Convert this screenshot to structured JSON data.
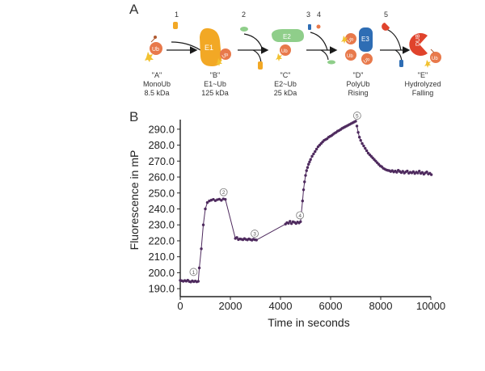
{
  "panel_a": {
    "label": "A",
    "steps": [
      "1",
      "2",
      "3",
      "4",
      "5"
    ],
    "states": [
      {
        "letter": "\"A\"",
        "line1": "MonoUb",
        "line2": "8.5 kDa"
      },
      {
        "letter": "\"B\"",
        "line1": "E1~Ub",
        "line2": "125 kDa"
      },
      {
        "letter": "\"C\"",
        "line1": "E2~Ub",
        "line2": "25 kDa"
      },
      {
        "letter": "\"D\"",
        "line1": "PolyUb",
        "line2": "Rising"
      },
      {
        "letter": "\"E\"",
        "line1": "Hydrolyzed",
        "line2": "Falling"
      }
    ],
    "molecule_labels": {
      "ub": "Ub",
      "e1": "E1",
      "e2": "E2",
      "e3": "E3",
      "dub": "DUB"
    },
    "colors": {
      "ub": "#e8794b",
      "e1": "#f2a825",
      "e2": "#8fce8a",
      "e3": "#2e6db4",
      "dub": "#e0432c",
      "atp": "#f2a825"
    }
  },
  "panel_b": {
    "label": "B"
  },
  "chart_data": {
    "type": "scatter",
    "title": "",
    "xlabel": "Time in seconds",
    "ylabel": "Fluorescence in mP",
    "xlim": [
      0,
      10000
    ],
    "ylim": [
      185,
      296
    ],
    "xticks": [
      0,
      2000,
      4000,
      6000,
      8000,
      10000
    ],
    "xtick_labels": [
      "0",
      "2000",
      "4000",
      "6000",
      "8000",
      "10000"
    ],
    "yticks": [
      190,
      200,
      210,
      220,
      230,
      240,
      250,
      260,
      270,
      280,
      290
    ],
    "ytick_labels": [
      "190.0",
      "200.0",
      "210.0",
      "220.0",
      "230.0",
      "240.0",
      "250.0",
      "260.0",
      "270.0",
      "280.0",
      "290.0"
    ],
    "grid": false,
    "series": [
      {
        "name": "mP",
        "color": "#4e2a5e",
        "segments": [
          {
            "x": [
              0,
              60,
              120,
              180,
              240,
              300,
              360,
              420,
              480,
              540,
              600,
              660,
              720
            ],
            "y": [
              195.2,
              195.0,
              194.6,
              195.1,
              194.7,
              195.3,
              194.5,
              194.2,
              194.9,
              194.4,
              194.8,
              194.3,
              194.6
            ]
          },
          {
            "x": [
              760,
              840,
              920,
              1000,
              1080,
              1160,
              1240,
              1320,
              1400,
              1480,
              1560,
              1640,
              1720,
              1800
            ],
            "y": [
              203,
              215,
              230,
              240,
              244,
              245,
              245.5,
              246,
              245.2,
              245.8,
              246.1,
              245.4,
              246.3,
              246.0
            ]
          },
          {
            "x": [
              2200,
              2260,
              2320,
              2380,
              2440,
              2500,
              2560,
              2620,
              2680,
              2740,
              2800,
              2860,
              2920,
              2980,
              3040
            ],
            "y": [
              221.5,
              222.1,
              220.8,
              221.2,
              221.0,
              220.7,
              221.4,
              220.9,
              220.6,
              221.2,
              220.8,
              220.4,
              221.0,
              220.7,
              220.5
            ]
          },
          {
            "x": [
              4200,
              4260,
              4320,
              4380,
              4440,
              4500,
              4560,
              4620,
              4680,
              4740,
              4800
            ],
            "y": [
              230.5,
              231.4,
              231.0,
              232.2,
              230.8,
              232.0,
              231.6,
              230.9,
              231.8,
              231.2,
              232.0
            ]
          },
          {
            "x": [
              4880,
              4920,
              4960,
              5000,
              5040,
              5080,
              5120,
              5160,
              5200,
              5260,
              5320,
              5380,
              5440,
              5500,
              5560,
              5620,
              5680,
              5740,
              5800,
              5860,
              5920,
              5980,
              6040,
              6100,
              6160,
              6220,
              6280,
              6340,
              6400,
              6460,
              6520,
              6580,
              6640,
              6700,
              6760,
              6820,
              6880,
              6940,
              7000
            ],
            "y": [
              245,
              252,
              257,
              261,
              264,
              266,
              268,
              269.5,
              271,
              273,
              274.5,
              276,
              277.5,
              279,
              280,
              281,
              282,
              283,
              283.5,
              284,
              285,
              285.5,
              286,
              286.8,
              287.5,
              288,
              288.8,
              289.2,
              289.8,
              290.5,
              291,
              291.5,
              292,
              292.5,
              293,
              293.5,
              294,
              294.5,
              295
            ]
          },
          {
            "x": [
              7050,
              7100,
              7150,
              7200,
              7260,
              7320,
              7380,
              7440,
              7500,
              7560,
              7620,
              7680,
              7740,
              7800,
              7860,
              7920,
              7980,
              8040,
              8100,
              8160,
              8220,
              8280,
              8340,
              8400,
              8460,
              8520,
              8580,
              8640,
              8700,
              8760,
              8820,
              8880,
              8940,
              9000,
              9060,
              9120,
              9180,
              9240,
              9300,
              9360,
              9420,
              9480,
              9540,
              9600,
              9660,
              9720,
              9780,
              9840,
              9900,
              9960,
              10020
            ],
            "y": [
              292,
              288,
              285,
              283,
              281,
              279.5,
              278,
              276.5,
              275,
              274,
              273,
              272,
              271,
              270,
              269,
              268,
              267,
              266.5,
              265.5,
              265,
              264.5,
              264.2,
              264,
              263.5,
              264,
              263.2,
              263.8,
              263,
              264.2,
              263.5,
              262.8,
              263.6,
              262.5,
              263.2,
              263.8,
              262.4,
              263,
              262.6,
              263.4,
              262.2,
              263.1,
              262.5,
              263.7,
              262.3,
              262.9,
              261.8,
              262.6,
              263.2,
              261.9,
              262.4,
              261.5
            ]
          }
        ]
      }
    ],
    "connectors": [
      {
        "x": [
          720,
          760
        ],
        "y": [
          194.6,
          203
        ]
      },
      {
        "x": [
          1800,
          2200
        ],
        "y": [
          246.0,
          221.5
        ]
      },
      {
        "x": [
          3040,
          4200
        ],
        "y": [
          220.5,
          230.5
        ]
      },
      {
        "x": [
          4800,
          4880
        ],
        "y": [
          232.0,
          245
        ]
      }
    ],
    "annotations": [
      {
        "text": "1",
        "x": 530,
        "y": 200.5
      },
      {
        "text": "2",
        "x": 1730,
        "y": 250.5
      },
      {
        "text": "3",
        "x": 2970,
        "y": 224.5
      },
      {
        "text": "4",
        "x": 4780,
        "y": 236.0
      },
      {
        "text": "5",
        "x": 7060,
        "y": 298.5
      }
    ]
  }
}
